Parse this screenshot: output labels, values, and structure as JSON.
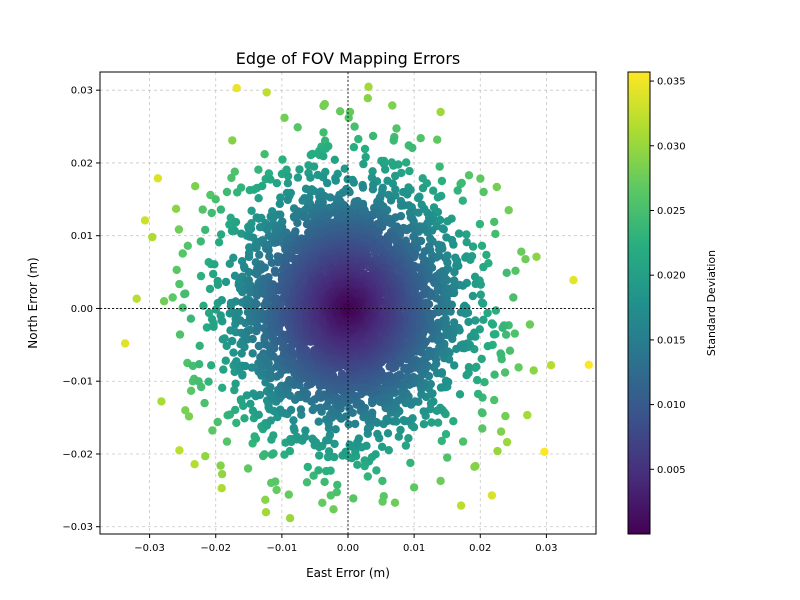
{
  "chart_data": {
    "type": "scatter",
    "title": "Edge of FOV Mapping Errors",
    "xlabel": "East Error (m)",
    "ylabel": "North Error (m)",
    "xlim": [
      -0.0375,
      0.0375
    ],
    "ylim": [
      -0.031,
      0.0325
    ],
    "xticks": [
      -0.03,
      -0.02,
      -0.01,
      0.0,
      0.01,
      0.02,
      0.03
    ],
    "xtick_labels": [
      "−0.03",
      "−0.02",
      "−0.01",
      "0.00",
      "0.01",
      "0.02",
      "0.03"
    ],
    "yticks": [
      -0.03,
      -0.02,
      -0.01,
      0.0,
      0.01,
      0.02,
      0.03
    ],
    "ytick_labels": [
      "−0.03",
      "−0.02",
      "−0.01",
      "0.00",
      "0.01",
      "0.02",
      "0.03"
    ],
    "grid": true,
    "colormap": "viridis",
    "colorbar": {
      "label": "Standard Deviation",
      "range": [
        0.0,
        0.0357
      ],
      "ticks": [
        0.005,
        0.01,
        0.015,
        0.02,
        0.025,
        0.03,
        0.035
      ],
      "tick_labels": [
        "0.005",
        "0.010",
        "0.015",
        "0.020",
        "0.025",
        "0.030",
        "0.035"
      ]
    },
    "series": [
      {
        "color_by": "distance from origin",
        "points": [
          [
            -0.0337,
            -0.0048
          ],
          [
            -0.0307,
            0.0121
          ],
          [
            0.0341,
            0.0039
          ],
          [
            0.0307,
            -0.0078
          ],
          [
            0.0297,
            -0.0197
          ],
          [
            -0.0255,
            -0.0195
          ],
          [
            -0.0123,
            0.0297
          ],
          [
            0.0285,
            0.0071
          ],
          [
            -0.0232,
            -0.0214
          ],
          [
            -0.0175,
            0.0231
          ],
          [
            0.0171,
            -0.0271
          ],
          [
            -0.0191,
            -0.0247
          ],
          [
            -0.0124,
            -0.028
          ],
          [
            0.014,
            0.027
          ],
          [
            0.0067,
            0.0279
          ],
          [
            0.003,
            0.0289
          ],
          [
            0.0225,
            0.0167
          ],
          [
            0.0226,
            -0.0196
          ],
          [
            -0.0231,
            0.0168
          ],
          [
            -0.026,
            0.0137
          ],
          [
            -0.0246,
            -0.014
          ],
          [
            -0.0216,
            -0.0203
          ],
          [
            -0.0125,
            -0.0263
          ],
          [
            -0.0022,
            -0.0276
          ],
          [
            0.0071,
            -0.0267
          ],
          [
            0.014,
            -0.0237
          ],
          [
            0.0258,
            -0.0081
          ],
          [
            0.0262,
            0.0078
          ],
          [
            0.0243,
            0.0135
          ],
          [
            0.0001,
            0.0262
          ],
          [
            0.0003,
            0.027
          ],
          [
            -0.0012,
            0.0271
          ],
          [
            0.001,
            0.025
          ],
          [
            -0.0026,
            -0.0257
          ],
          [
            0.0275,
            -0.0022
          ],
          [
            -0.0265,
            0.0015
          ],
          [
            -0.0278,
            0.001
          ],
          [
            -0.0254,
            -0.0036
          ],
          [
            -0.0259,
            0.0053
          ],
          [
            -0.025,
            0.0001
          ],
          [
            0.024,
            0.0049
          ],
          [
            0.025,
            0.0015
          ],
          [
            0.0245,
            -0.0058
          ],
          [
            0.0238,
            -0.0148
          ],
          [
            -0.0183,
            -0.0183
          ],
          [
            0.0183,
            0.0183
          ],
          [
            -0.0183,
            0.016
          ],
          [
            0.0174,
            -0.0183
          ],
          [
            -0.0096,
            0.0262
          ],
          [
            0.0092,
            0.0224
          ],
          [
            -0.0151,
            -0.022
          ],
          [
            0.015,
            -0.0205
          ],
          [
            -0.0222,
            -0.0108
          ],
          [
            0.0221,
            -0.0126
          ],
          [
            0.0221,
            0.0119
          ],
          [
            -0.0216,
            0.0108
          ],
          [
            -0.0062,
            -0.0239
          ],
          [
            0.0052,
            -0.0237
          ],
          [
            -0.0037,
            0.0242
          ],
          [
            0.0038,
            0.0237
          ],
          [
            -0.0076,
            0.0249
          ],
          [
            0.011,
            0.0234
          ],
          [
            -0.011,
            -0.0238
          ],
          [
            0.01,
            -0.0246
          ],
          [
            -0.02,
            0.015
          ],
          [
            0.0205,
            0.016
          ],
          [
            -0.0197,
            -0.0156
          ],
          [
            0.0203,
            -0.0165
          ]
        ],
        "cloud_points": 3500,
        "cloud_sigma": 0.0085
      }
    ]
  }
}
